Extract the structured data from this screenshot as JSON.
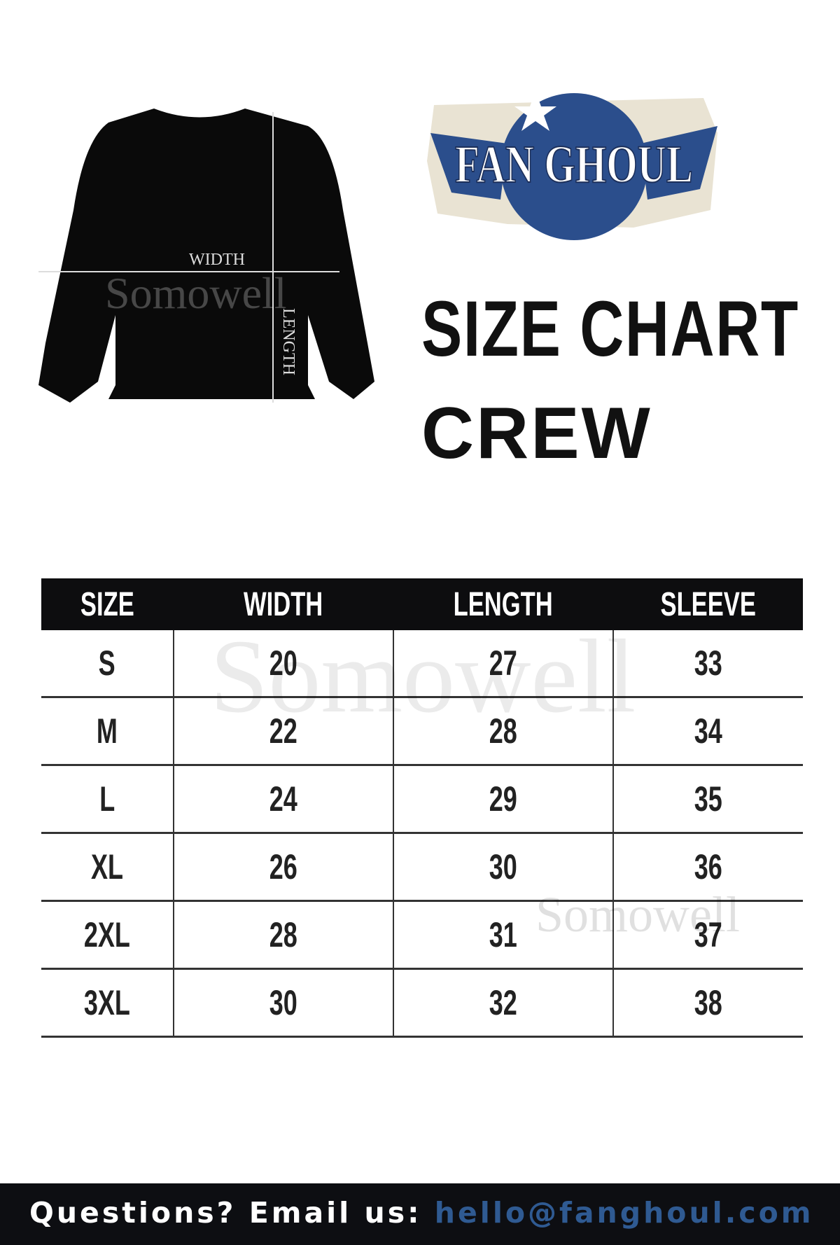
{
  "logo": {
    "text": "FAN GHOUL",
    "colors": {
      "blue": "#2b4e8c",
      "cream": "#e9e3d3"
    }
  },
  "garment_diagram": {
    "width_label": "WIDTH",
    "length_label": "LENGTH",
    "icon": "sweatshirt-icon"
  },
  "title": {
    "line1": "SIZE CHART",
    "line2": "CREW"
  },
  "watermark": "Somowell",
  "table": {
    "headers": [
      "SIZE",
      "WIDTH",
      "LENGTH",
      "SLEEVE"
    ],
    "rows": [
      [
        "S",
        "20",
        "27",
        "33"
      ],
      [
        "M",
        "22",
        "28",
        "34"
      ],
      [
        "L",
        "24",
        "29",
        "35"
      ],
      [
        "XL",
        "26",
        "30",
        "36"
      ],
      [
        "2XL",
        "28",
        "31",
        "37"
      ],
      [
        "3XL",
        "30",
        "32",
        "38"
      ]
    ]
  },
  "footer": {
    "question": "Questions? Email us:",
    "email": "hello@fanghoul.com",
    "email_color": "#2f5a92"
  }
}
